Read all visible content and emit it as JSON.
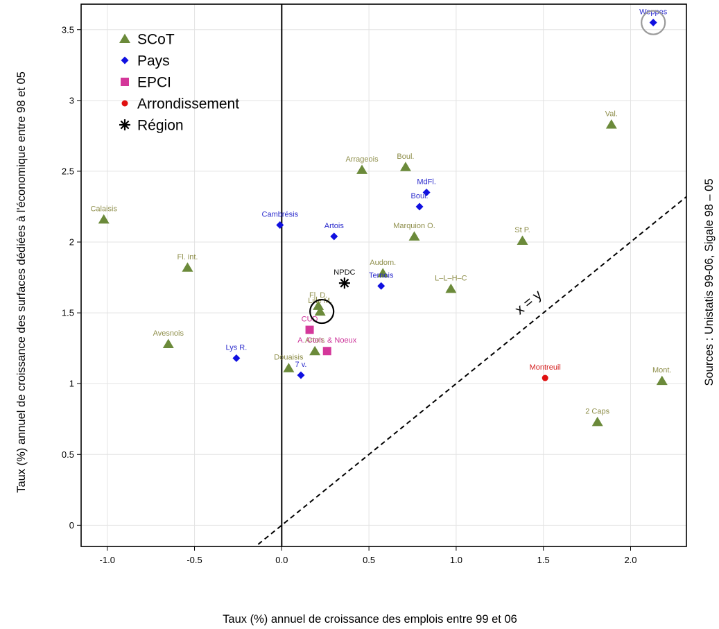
{
  "chart_data": {
    "type": "scatter",
    "xlabel": "Taux (%) annuel de croissance des emplois entre 99 et 06",
    "ylabel": "Taux (%) annuel de croissance des surfaces dédiées à l'économique entre 98 et 05",
    "source_note": "Sources : Unistatis 99-06, Sigale 98 – 05",
    "xlim": [
      -1.15,
      2.32
    ],
    "ylim": [
      -0.15,
      3.68
    ],
    "x_ticks": [
      -1.0,
      -0.5,
      0.0,
      0.5,
      1.0,
      1.5,
      2.0
    ],
    "x_tick_labels": [
      "-1.0",
      "-0.5",
      "0.0",
      "0.5",
      "1.0",
      "1.5",
      "2.0"
    ],
    "y_ticks": [
      0,
      0.5,
      1,
      1.5,
      2,
      2.5,
      3,
      3.5
    ],
    "y_tick_labels": [
      "0",
      "0.5",
      "1",
      "1.5",
      "2",
      "2.5",
      "3",
      "3.5"
    ],
    "grid": true,
    "legend_position": "top-left",
    "reference_lines": {
      "vertical_x": 0,
      "diagonal_label": "x = y",
      "diagonal_intercept": 0
    },
    "legend": [
      {
        "name": "SCoT",
        "marker": "triangle",
        "color": "#6b8a3a"
      },
      {
        "name": "Pays",
        "marker": "diamond",
        "color": "#1010e0"
      },
      {
        "name": "EPCI",
        "marker": "square",
        "color": "#d4379a"
      },
      {
        "name": "Arrondissement",
        "marker": "circle",
        "color": "#e01010"
      },
      {
        "name": "Région",
        "marker": "star",
        "color": "#000000"
      }
    ],
    "series": [
      {
        "name": "SCoT",
        "label_color": "#8e8e4a",
        "points": [
          {
            "label": "Calaisis",
            "x": -1.02,
            "y": 2.16
          },
          {
            "label": "Fl. int.",
            "x": -0.54,
            "y": 1.82
          },
          {
            "label": "Avesnois",
            "x": -0.65,
            "y": 1.28
          },
          {
            "label": "Arrageois",
            "x": 0.46,
            "y": 2.51
          },
          {
            "label": "Boul.",
            "x": 0.71,
            "y": 2.53
          },
          {
            "label": "Marquion O.",
            "x": 0.76,
            "y": 2.04
          },
          {
            "label": "Audom.",
            "x": 0.58,
            "y": 1.78
          },
          {
            "label": "L–L–H–C",
            "x": 0.97,
            "y": 1.67
          },
          {
            "label": "St P.",
            "x": 1.38,
            "y": 2.01
          },
          {
            "label": "Val.",
            "x": 1.89,
            "y": 2.83
          },
          {
            "label": "Mont.",
            "x": 2.18,
            "y": 1.02
          },
          {
            "label": "2 Caps",
            "x": 1.81,
            "y": 0.73
          },
          {
            "label": "Fl. D.",
            "x": 0.21,
            "y": 1.55
          },
          {
            "label": "Lille M.",
            "x": 0.22,
            "y": 1.51
          },
          {
            "label": "Artois",
            "x": 0.19,
            "y": 1.23
          },
          {
            "label": "Douaisis",
            "x": 0.04,
            "y": 1.11
          }
        ]
      },
      {
        "name": "Pays",
        "label_color": "#2a2acc",
        "points": [
          {
            "label": "Cambrésis",
            "x": -0.01,
            "y": 2.12
          },
          {
            "label": "Artois",
            "x": 0.3,
            "y": 2.04
          },
          {
            "label": "MdFl.",
            "x": 0.83,
            "y": 2.35
          },
          {
            "label": "Boul.",
            "x": 0.79,
            "y": 2.25
          },
          {
            "label": "Ternois",
            "x": 0.57,
            "y": 1.69
          },
          {
            "label": "Lys R.",
            "x": -0.26,
            "y": 1.18
          },
          {
            "label": "7 v.",
            "x": 0.11,
            "y": 1.06
          },
          {
            "label": "Weppes",
            "x": 2.13,
            "y": 3.55
          }
        ]
      },
      {
        "name": "EPCI",
        "label_color": "#cc3399",
        "points": [
          {
            "label": "CUD",
            "x": 0.16,
            "y": 1.38
          },
          {
            "label": "A. Com. & Noeux",
            "x": 0.26,
            "y": 1.23
          }
        ]
      },
      {
        "name": "Arrondissement",
        "label_color": "#d42020",
        "points": [
          {
            "label": "Montreuil",
            "x": 1.51,
            "y": 1.04
          }
        ]
      },
      {
        "name": "Région",
        "label_color": "#111111",
        "points": [
          {
            "label": "NPDC",
            "x": 0.36,
            "y": 1.71
          }
        ]
      }
    ],
    "highlights": [
      {
        "x": 0.23,
        "y": 1.51,
        "color": "#000000"
      },
      {
        "x": 2.13,
        "y": 3.55,
        "color": "#9a9a9a"
      }
    ]
  }
}
